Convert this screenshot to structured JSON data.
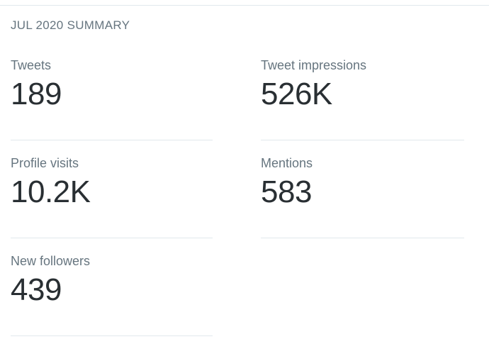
{
  "header": {
    "title": "JUL 2020 SUMMARY"
  },
  "metrics": [
    {
      "label": "Tweets",
      "value": "189"
    },
    {
      "label": "Tweet impressions",
      "value": "526K"
    },
    {
      "label": "Profile visits",
      "value": "10.2K"
    },
    {
      "label": "Mentions",
      "value": "583"
    },
    {
      "label": "New followers",
      "value": "439"
    }
  ],
  "colors": {
    "label_text": "#66757f",
    "value_text": "#292f33",
    "divider": "#e1e8ed",
    "background": "#ffffff"
  }
}
